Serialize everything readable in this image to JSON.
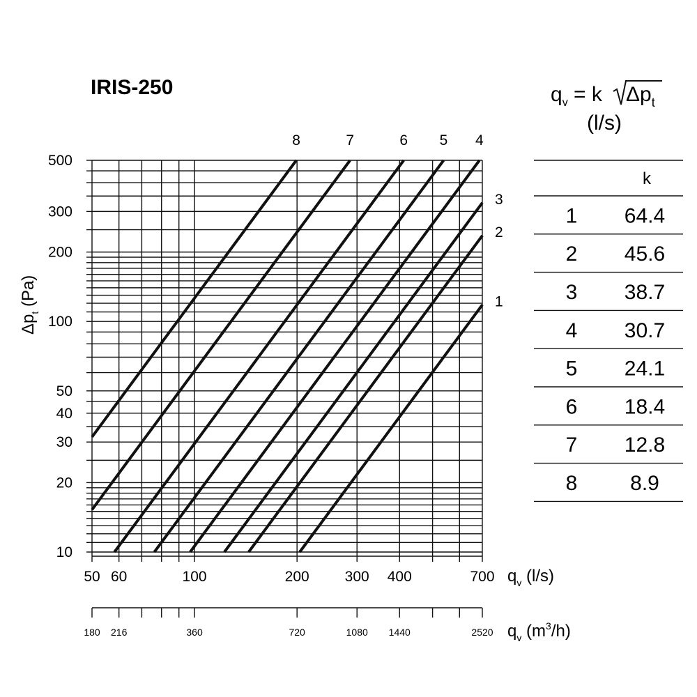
{
  "chart_data": {
    "type": "line",
    "title": "IRIS-250",
    "formula": {
      "text_q": "q",
      "text_q_sub": "v",
      "text_eq": " = k",
      "text_dp": "Δp",
      "text_dp_sub": "t",
      "unit": "(l/s)"
    },
    "x_axis": {
      "label": "q",
      "label_sub": "v",
      "label_unit": " (l/s)",
      "scale": "log",
      "range": [
        50,
        700
      ],
      "tick_labels": [
        50,
        60,
        100,
        200,
        300,
        400,
        700
      ],
      "gridlines": [
        50,
        60,
        70,
        80,
        90,
        100,
        200,
        300,
        400,
        500,
        600,
        700
      ]
    },
    "x2_axis": {
      "label": "q",
      "label_sub": "v",
      "label_unit_pre": " (m",
      "label_unit_sup": "3",
      "label_unit_post": "/h)",
      "tick_labels": [
        180,
        216,
        360,
        720,
        1080,
        1440,
        2520
      ]
    },
    "y_axis": {
      "label": "Δp",
      "label_sub": "t",
      "label_unit": "  (Pa)",
      "scale": "log",
      "range": [
        10,
        500
      ],
      "tick_labels": [
        10,
        20,
        30,
        40,
        50,
        100,
        200,
        300,
        500
      ],
      "gridlines": [
        10,
        11,
        12,
        13,
        14,
        15,
        16,
        17,
        18,
        19,
        20,
        25,
        30,
        35,
        40,
        45,
        50,
        60,
        70,
        80,
        90,
        100,
        110,
        120,
        130,
        140,
        150,
        160,
        170,
        180,
        190,
        200,
        250,
        300,
        350,
        400,
        450,
        500
      ]
    },
    "series": [
      {
        "name": "1",
        "k": 64.4
      },
      {
        "name": "2",
        "k": 45.6
      },
      {
        "name": "3",
        "k": 38.7
      },
      {
        "name": "4",
        "k": 30.7
      },
      {
        "name": "5",
        "k": 24.1
      },
      {
        "name": "6",
        "k": 18.4
      },
      {
        "name": "7",
        "k": 12.8
      },
      {
        "name": "8",
        "k": 8.9
      }
    ],
    "k_table": {
      "header": "k",
      "rows": [
        {
          "id": "1",
          "k": "64.4"
        },
        {
          "id": "2",
          "k": "45.6"
        },
        {
          "id": "3",
          "k": "38.7"
        },
        {
          "id": "4",
          "k": "30.7"
        },
        {
          "id": "5",
          "k": "24.1"
        },
        {
          "id": "6",
          "k": "18.4"
        },
        {
          "id": "7",
          "k": "12.8"
        },
        {
          "id": "8",
          "k": "8.9"
        }
      ]
    },
    "grid": true
  }
}
